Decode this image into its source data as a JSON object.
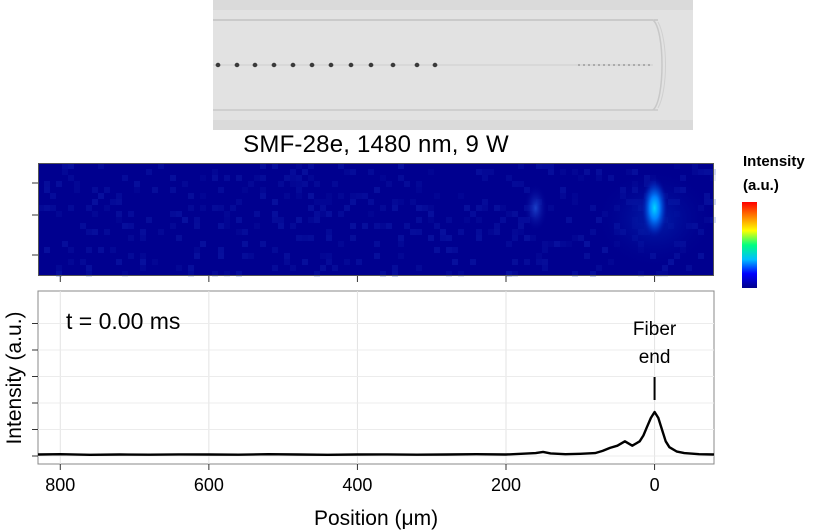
{
  "chart_data": [
    {
      "type": "heatmap",
      "title": "SMF-28e, 1480 nm, 9 W",
      "xlim": [
        830,
        -80
      ],
      "x_reversed": true,
      "colorbar": {
        "title_line1": "Intensity",
        "title_line2": "(a.u.)",
        "colors": [
          "#00008b",
          "#0000ff",
          "#00bfff",
          "#00ff80",
          "#ffff00",
          "#ff8000",
          "#ff0000"
        ]
      },
      "hotspots": [
        {
          "x": 0,
          "intensity": 0.55
        },
        {
          "x": 160,
          "intensity": 0.12
        }
      ]
    },
    {
      "type": "line",
      "xlabel": "Position (μm)",
      "ylabel": "Intensity (a.u.)",
      "xlim": [
        830,
        -80
      ],
      "x_reversed": true,
      "ylim": [
        0,
        1
      ],
      "xticks": [
        800,
        600,
        400,
        200,
        0
      ],
      "grid": true,
      "time_label": "t =  0.00 ms",
      "annotation": {
        "line1": "Fiber",
        "line2": "end",
        "x": 0
      },
      "series": [
        {
          "x": [
            830,
            800,
            760,
            720,
            680,
            640,
            600,
            560,
            520,
            480,
            440,
            400,
            360,
            320,
            280,
            240,
            200,
            180,
            160,
            150,
            140,
            120,
            100,
            80,
            70,
            60,
            50,
            40,
            30,
            20,
            15,
            10,
            5,
            0,
            -5,
            -10,
            -15,
            -20,
            -30,
            -40,
            -60,
            -80
          ],
          "values": [
            0.01,
            0.012,
            0.008,
            0.01,
            0.009,
            0.011,
            0.01,
            0.009,
            0.012,
            0.01,
            0.008,
            0.01,
            0.011,
            0.009,
            0.01,
            0.012,
            0.01,
            0.015,
            0.02,
            0.028,
            0.018,
            0.012,
            0.015,
            0.02,
            0.035,
            0.055,
            0.07,
            0.1,
            0.07,
            0.1,
            0.14,
            0.2,
            0.26,
            0.3,
            0.26,
            0.18,
            0.1,
            0.06,
            0.03,
            0.02,
            0.012,
            0.01
          ]
        }
      ]
    }
  ]
}
